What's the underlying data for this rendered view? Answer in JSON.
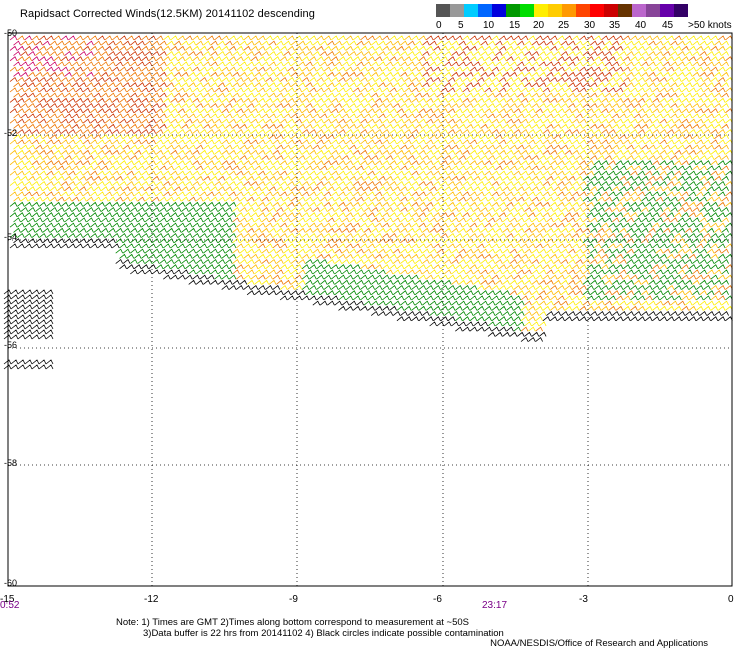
{
  "title": "Rapidsact Corrected Winds(12.5KM) 20141102 descending",
  "legend": {
    "colors": [
      "#555555",
      "#999999",
      "#00ccff",
      "#0066ff",
      "#0000dd",
      "#009900",
      "#00dd00",
      "#ffee00",
      "#ffcc00",
      "#ff9900",
      "#ff4400",
      "#ff0000",
      "#cc0000",
      "#663300",
      "#bb66cc",
      "#884499",
      "#6600aa",
      "#330066"
    ],
    "labels": [
      "0",
      "5",
      "10",
      "15",
      "20",
      "25",
      "30",
      "35",
      "40",
      "45",
      ">50 knots"
    ]
  },
  "lat_labels": [
    "-50",
    "-52",
    "-54",
    "-56",
    "-58",
    "-60"
  ],
  "lon_labels": [
    "-15",
    "-12",
    "-9",
    "-6",
    "-3",
    "0"
  ],
  "times": [
    "0:52",
    "23:17"
  ],
  "notes": [
    "Note: 1) Times are GMT 2)Times along bottom correspond to measurement at ~50S",
    "3)Data buffer is 22 hrs from 20141102 4) Black circles indicate possible contamination"
  ],
  "credit": "NOAA/NESDIS/Office of Research and Applications",
  "colors": {
    "black": "#000000",
    "green": "#008800",
    "yellow": "#ffee00",
    "gold": "#ffbb00",
    "orange": "#ee7700",
    "red": "#cc3300",
    "magenta": "#cc0066"
  }
}
